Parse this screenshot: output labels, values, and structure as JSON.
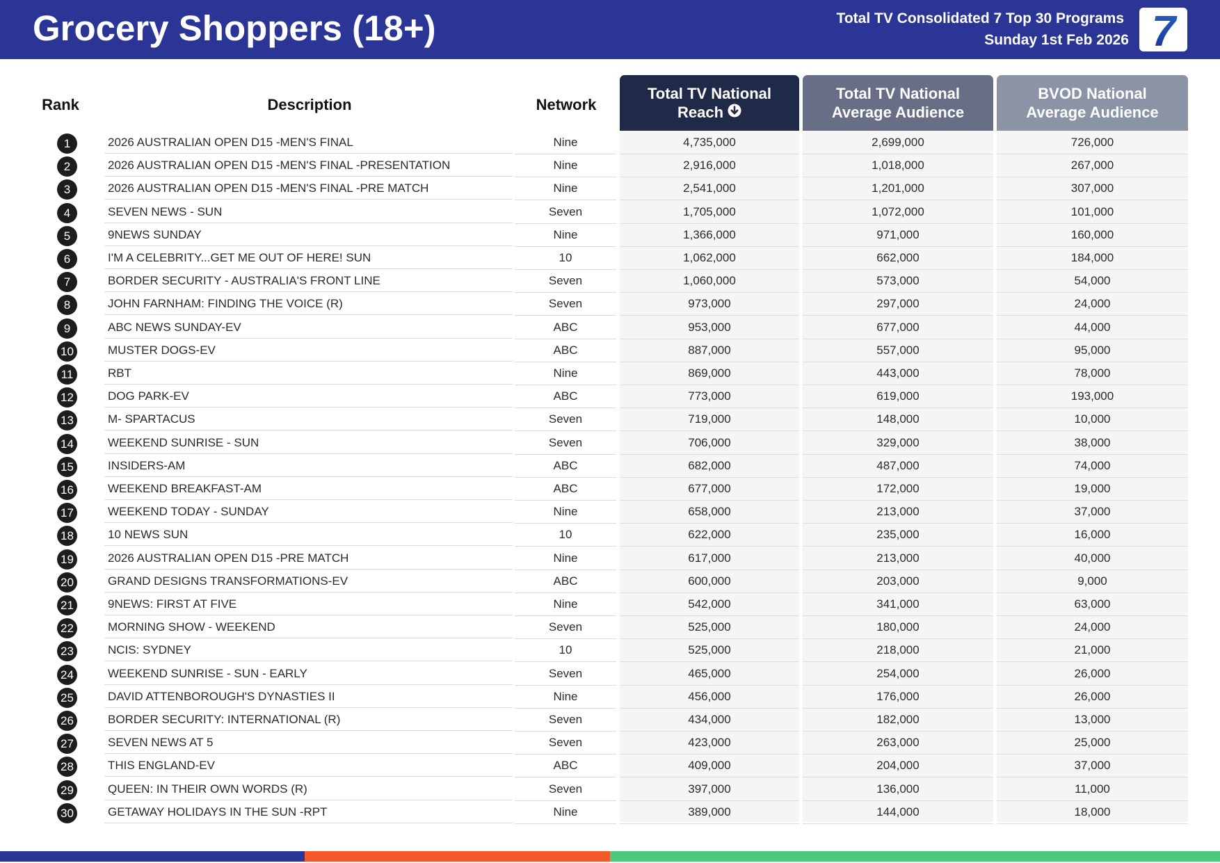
{
  "header": {
    "title": "Grocery Shoppers (18+)",
    "subtitle_line1": "Total TV Consolidated 7 Top 30 Programs",
    "subtitle_line2": "Sunday 1st Feb 2026",
    "logo_text": "7",
    "background_color": "#2b3595"
  },
  "columns": {
    "rank": "Rank",
    "description": "Description",
    "network": "Network",
    "reach_line1": "Total TV National",
    "reach_line2": "Reach",
    "avg_line1": "Total TV National",
    "avg_line2": "Average Audience",
    "bvod_line1": "BVOD National",
    "bvod_line2": "Average Audience",
    "sort_icon": "arrow-down-circle-icon"
  },
  "rows": [
    {
      "rank": "1",
      "description": "2026 AUSTRALIAN OPEN D15 -MEN'S FINAL",
      "network": "Nine",
      "reach": "4,735,000",
      "avg": "2,699,000",
      "bvod": "726,000"
    },
    {
      "rank": "2",
      "description": "2026 AUSTRALIAN OPEN D15 -MEN'S FINAL -PRESENTATION",
      "network": "Nine",
      "reach": "2,916,000",
      "avg": "1,018,000",
      "bvod": "267,000"
    },
    {
      "rank": "3",
      "description": "2026 AUSTRALIAN OPEN D15 -MEN'S FINAL -PRE MATCH",
      "network": "Nine",
      "reach": "2,541,000",
      "avg": "1,201,000",
      "bvod": "307,000"
    },
    {
      "rank": "4",
      "description": "SEVEN NEWS - SUN",
      "network": "Seven",
      "reach": "1,705,000",
      "avg": "1,072,000",
      "bvod": "101,000"
    },
    {
      "rank": "5",
      "description": "9NEWS SUNDAY",
      "network": "Nine",
      "reach": "1,366,000",
      "avg": "971,000",
      "bvod": "160,000"
    },
    {
      "rank": "6",
      "description": "I'M A CELEBRITY...GET ME OUT OF HERE! SUN",
      "network": "10",
      "reach": "1,062,000",
      "avg": "662,000",
      "bvod": "184,000"
    },
    {
      "rank": "7",
      "description": "BORDER SECURITY - AUSTRALIA'S FRONT LINE",
      "network": "Seven",
      "reach": "1,060,000",
      "avg": "573,000",
      "bvod": "54,000"
    },
    {
      "rank": "8",
      "description": "JOHN FARNHAM: FINDING THE VOICE (R)",
      "network": "Seven",
      "reach": "973,000",
      "avg": "297,000",
      "bvod": "24,000"
    },
    {
      "rank": "9",
      "description": "ABC NEWS SUNDAY-EV",
      "network": "ABC",
      "reach": "953,000",
      "avg": "677,000",
      "bvod": "44,000"
    },
    {
      "rank": "10",
      "description": "MUSTER DOGS-EV",
      "network": "ABC",
      "reach": "887,000",
      "avg": "557,000",
      "bvod": "95,000"
    },
    {
      "rank": "11",
      "description": "RBT",
      "network": "Nine",
      "reach": "869,000",
      "avg": "443,000",
      "bvod": "78,000"
    },
    {
      "rank": "12",
      "description": "DOG PARK-EV",
      "network": "ABC",
      "reach": "773,000",
      "avg": "619,000",
      "bvod": "193,000"
    },
    {
      "rank": "13",
      "description": "M- SPARTACUS",
      "network": "Seven",
      "reach": "719,000",
      "avg": "148,000",
      "bvod": "10,000"
    },
    {
      "rank": "14",
      "description": "WEEKEND SUNRISE - SUN",
      "network": "Seven",
      "reach": "706,000",
      "avg": "329,000",
      "bvod": "38,000"
    },
    {
      "rank": "15",
      "description": "INSIDERS-AM",
      "network": "ABC",
      "reach": "682,000",
      "avg": "487,000",
      "bvod": "74,000"
    },
    {
      "rank": "16",
      "description": "WEEKEND BREAKFAST-AM",
      "network": "ABC",
      "reach": "677,000",
      "avg": "172,000",
      "bvod": "19,000"
    },
    {
      "rank": "17",
      "description": "WEEKEND TODAY - SUNDAY",
      "network": "Nine",
      "reach": "658,000",
      "avg": "213,000",
      "bvod": "37,000"
    },
    {
      "rank": "18",
      "description": "10 NEWS SUN",
      "network": "10",
      "reach": "622,000",
      "avg": "235,000",
      "bvod": "16,000"
    },
    {
      "rank": "19",
      "description": "2026 AUSTRALIAN OPEN D15 -PRE MATCH",
      "network": "Nine",
      "reach": "617,000",
      "avg": "213,000",
      "bvod": "40,000"
    },
    {
      "rank": "20",
      "description": "GRAND DESIGNS TRANSFORMATIONS-EV",
      "network": "ABC",
      "reach": "600,000",
      "avg": "203,000",
      "bvod": "9,000"
    },
    {
      "rank": "21",
      "description": "9NEWS: FIRST AT FIVE",
      "network": "Nine",
      "reach": "542,000",
      "avg": "341,000",
      "bvod": "63,000"
    },
    {
      "rank": "22",
      "description": "MORNING SHOW - WEEKEND",
      "network": "Seven",
      "reach": "525,000",
      "avg": "180,000",
      "bvod": "24,000"
    },
    {
      "rank": "23",
      "description": "NCIS: SYDNEY",
      "network": "10",
      "reach": "525,000",
      "avg": "218,000",
      "bvod": "21,000"
    },
    {
      "rank": "24",
      "description": "WEEKEND SUNRISE - SUN - EARLY",
      "network": "Seven",
      "reach": "465,000",
      "avg": "254,000",
      "bvod": "26,000"
    },
    {
      "rank": "25",
      "description": "DAVID ATTENBOROUGH'S DYNASTIES II",
      "network": "Nine",
      "reach": "456,000",
      "avg": "176,000",
      "bvod": "26,000"
    },
    {
      "rank": "26",
      "description": "BORDER SECURITY: INTERNATIONAL (R)",
      "network": "Seven",
      "reach": "434,000",
      "avg": "182,000",
      "bvod": "13,000"
    },
    {
      "rank": "27",
      "description": "SEVEN NEWS AT 5",
      "network": "Seven",
      "reach": "423,000",
      "avg": "263,000",
      "bvod": "25,000"
    },
    {
      "rank": "28",
      "description": "THIS ENGLAND-EV",
      "network": "ABC",
      "reach": "409,000",
      "avg": "204,000",
      "bvod": "37,000"
    },
    {
      "rank": "29",
      "description": "QUEEN: IN THEIR OWN WORDS (R)",
      "network": "Seven",
      "reach": "397,000",
      "avg": "136,000",
      "bvod": "11,000"
    },
    {
      "rank": "30",
      "description": "GETAWAY HOLIDAYS IN THE SUN -RPT",
      "network": "Nine",
      "reach": "389,000",
      "avg": "144,000",
      "bvod": "18,000"
    }
  ],
  "footer_colors": [
    "#2b3595",
    "#f4592b",
    "#4cc97f"
  ]
}
